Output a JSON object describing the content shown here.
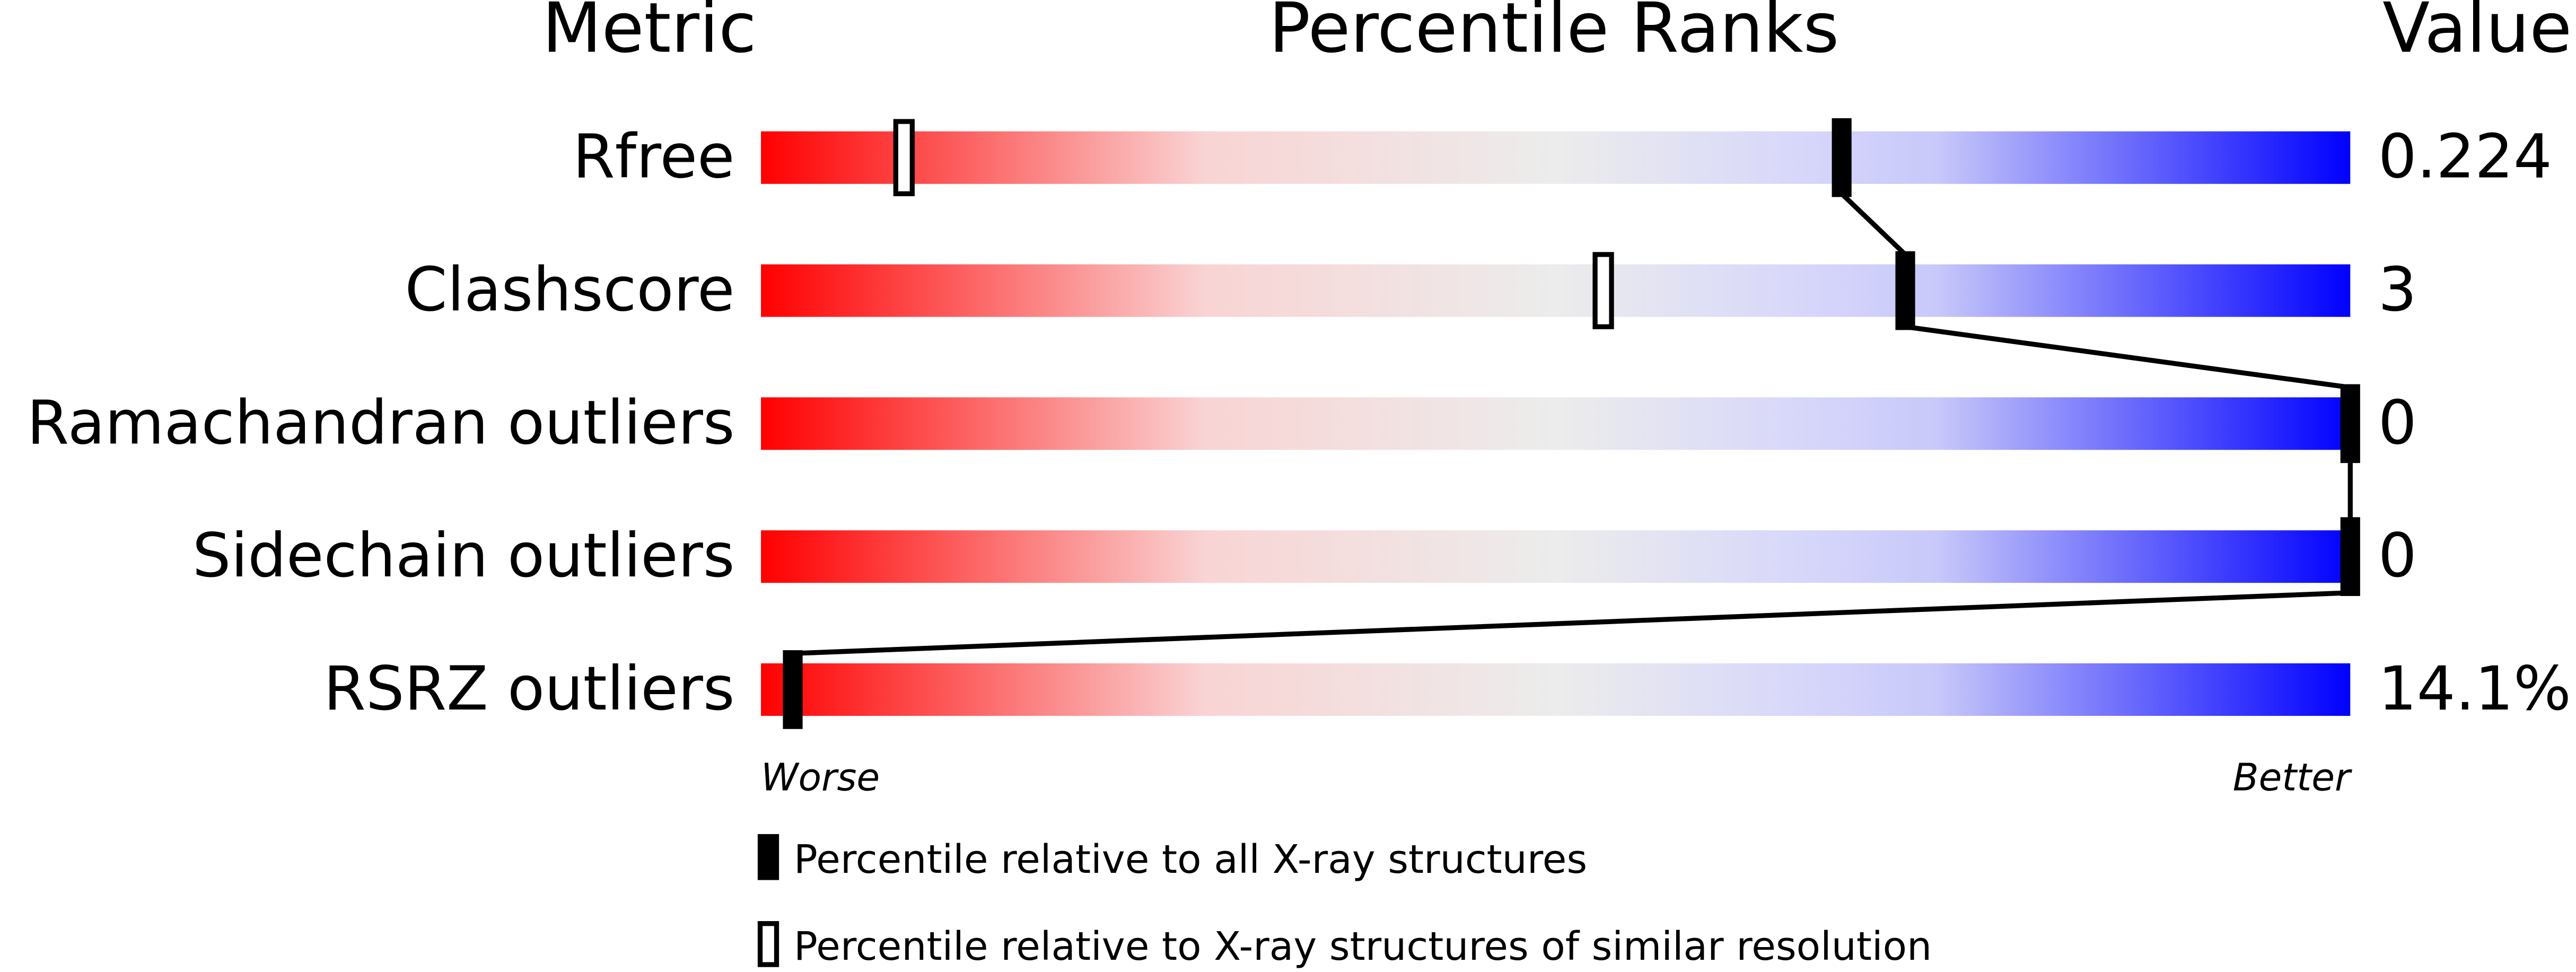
{
  "chart_data": {
    "type": "percentile-slider",
    "title": "Percentile Ranks",
    "metric_header": "Metric",
    "value_header": "Value",
    "categories": [
      "Rfree",
      "Clashscore",
      "Ramachandran outliers",
      "Sidechain outliers",
      "RSRZ outliers"
    ],
    "value_texts": [
      "0.224",
      "3",
      "0",
      "0",
      "14.1%"
    ],
    "xlim": [
      0,
      100
    ],
    "low_label": "Worse",
    "high_label": "Better",
    "series": [
      {
        "name": "Percentile relative to all X-ray structures",
        "color": "#000000",
        "style": "filled",
        "values": [
          68,
          72,
          100,
          100,
          2
        ]
      },
      {
        "name": "Percentile relative to X-ray structures of similar resolution",
        "color": "#000000",
        "style": "open",
        "values": [
          9,
          53,
          null,
          null,
          null
        ]
      }
    ]
  }
}
